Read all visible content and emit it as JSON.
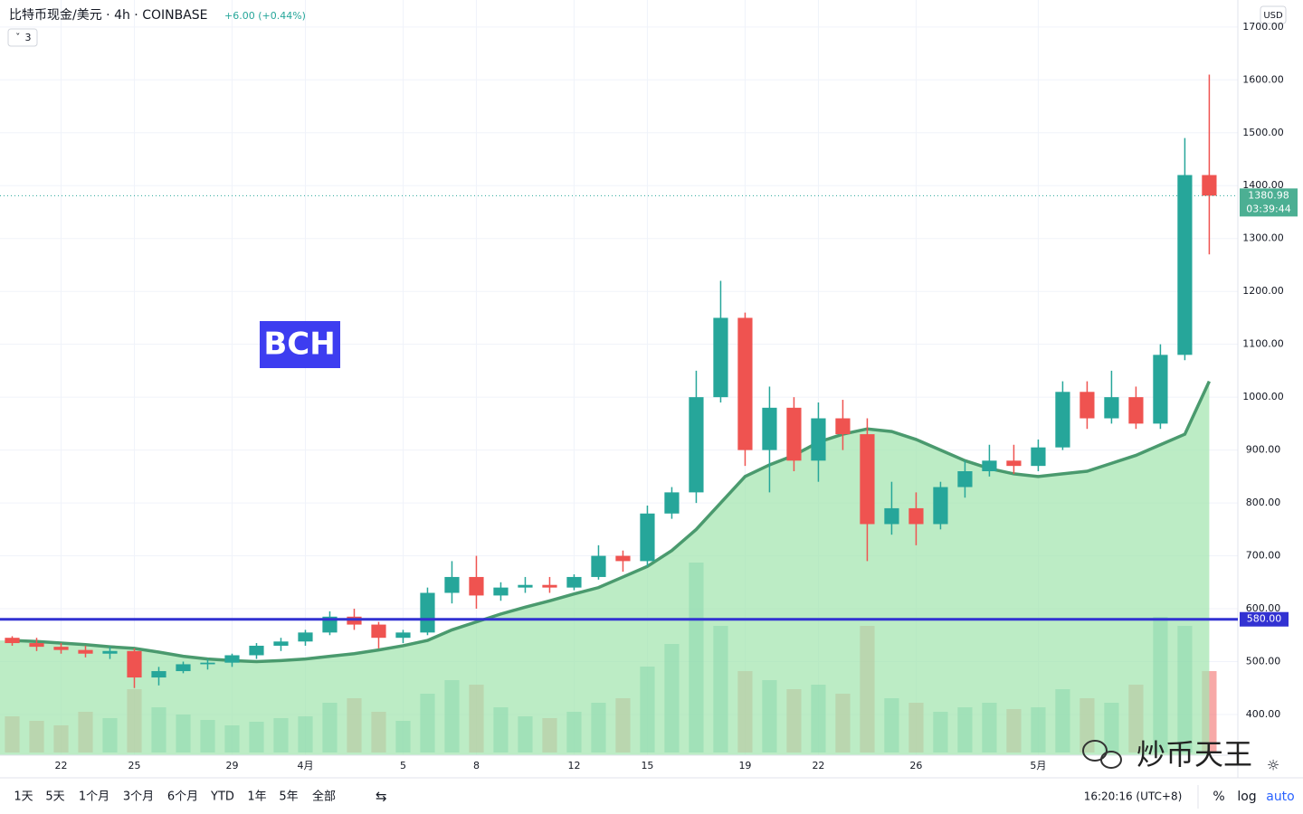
{
  "chart_data": {
    "type": "candlestick",
    "title": "比特币现金/美元 · 4h · COINBASE",
    "change": "+6.00 (+0.44%)",
    "indicator_count": "3",
    "currency": "USD",
    "annotation": "BCH",
    "watermark": "炒币天王",
    "time": "16:20:16 (UTC+8)",
    "toolbar": [
      "1天",
      "5天",
      "1个月",
      "3个月",
      "6个月",
      "YTD",
      "1年",
      "5年",
      "全部"
    ],
    "scale_buttons": [
      "%",
      "log",
      "auto"
    ],
    "up_color": "#26a69a",
    "down_color": "#ef5350",
    "open": [
      545,
      535,
      528,
      522,
      515,
      520,
      470,
      482,
      495,
      498,
      512,
      530,
      538,
      555,
      585,
      570,
      545,
      555,
      630,
      660,
      625,
      640,
      645,
      640,
      660,
      700,
      690,
      780,
      820,
      1000,
      1150,
      900,
      980,
      880,
      960,
      930,
      760,
      790,
      760,
      830,
      860,
      880,
      870,
      905,
      1010,
      960,
      1000,
      950,
      1080,
      1420
    ],
    "high": [
      548,
      545,
      535,
      530,
      528,
      525,
      490,
      500,
      505,
      515,
      535,
      545,
      560,
      595,
      600,
      575,
      560,
      640,
      690,
      700,
      650,
      660,
      660,
      665,
      720,
      710,
      795,
      830,
      1050,
      1220,
      1160,
      1020,
      1000,
      990,
      995,
      960,
      840,
      820,
      840,
      880,
      910,
      910,
      920,
      1030,
      1030,
      1050,
      1020,
      1100,
      1490,
      1610
    ],
    "low": [
      530,
      520,
      515,
      508,
      505,
      450,
      455,
      478,
      485,
      490,
      505,
      520,
      530,
      550,
      560,
      525,
      535,
      550,
      610,
      600,
      615,
      630,
      630,
      635,
      655,
      670,
      680,
      770,
      800,
      990,
      870,
      820,
      860,
      840,
      900,
      690,
      740,
      720,
      750,
      810,
      850,
      855,
      860,
      900,
      940,
      950,
      940,
      940,
      1070,
      1270
    ],
    "close": [
      535,
      528,
      522,
      515,
      520,
      470,
      482,
      495,
      498,
      512,
      530,
      538,
      555,
      585,
      570,
      545,
      555,
      630,
      660,
      625,
      640,
      645,
      640,
      660,
      700,
      690,
      780,
      820,
      1000,
      1150,
      900,
      980,
      880,
      960,
      930,
      760,
      790,
      760,
      830,
      860,
      880,
      870,
      905,
      1010,
      960,
      1000,
      950,
      1080,
      1420,
      1381
    ],
    "volume": [
      40,
      35,
      30,
      45,
      38,
      70,
      50,
      42,
      36,
      30,
      34,
      38,
      40,
      55,
      60,
      45,
      35,
      65,
      80,
      75,
      50,
      40,
      38,
      45,
      55,
      60,
      95,
      120,
      210,
      140,
      90,
      80,
      70,
      75,
      65,
      140,
      60,
      55,
      45,
      50,
      55,
      48,
      50,
      70,
      60,
      55,
      75,
      150,
      140,
      90
    ],
    "ma": {
      "color": "#4a9a6e",
      "values": [
        540,
        538,
        535,
        532,
        528,
        525,
        518,
        510,
        505,
        502,
        500,
        502,
        505,
        510,
        515,
        522,
        530,
        540,
        560,
        575,
        590,
        603,
        615,
        628,
        640,
        660,
        680,
        710,
        750,
        800,
        850,
        872,
        890,
        915,
        930,
        940,
        935,
        920,
        900,
        880,
        865,
        855,
        850,
        855,
        860,
        875,
        890,
        910,
        930,
        1030
      ]
    },
    "levels": [
      {
        "value": 580,
        "label": "580.00",
        "color": "#3232d2"
      }
    ],
    "last_price": {
      "value": 1380.98,
      "label": "1380.98",
      "countdown": "03:39:44"
    },
    "xlim": [
      -0.5,
      50.17
    ],
    "xticks": [
      {
        "value": 2,
        "label": "22"
      },
      {
        "value": 5,
        "label": "25"
      },
      {
        "value": 9,
        "label": "29"
      },
      {
        "value": 12,
        "label": "4月"
      },
      {
        "value": 16,
        "label": "5"
      },
      {
        "value": 19,
        "label": "8"
      },
      {
        "value": 23,
        "label": "12"
      },
      {
        "value": 26,
        "label": "15"
      },
      {
        "value": 30,
        "label": "19"
      },
      {
        "value": 33,
        "label": "22"
      },
      {
        "value": 37,
        "label": "26"
      },
      {
        "value": 42,
        "label": "5月"
      }
    ],
    "ylim": [
      323,
      1751
    ],
    "yticks": [
      {
        "value": 400,
        "label": "400.00"
      },
      {
        "value": 500,
        "label": "500.00"
      },
      {
        "value": 600,
        "label": "600.00"
      },
      {
        "value": 700,
        "label": "700.00"
      },
      {
        "value": 800,
        "label": "800.00"
      },
      {
        "value": 900,
        "label": "900.00"
      },
      {
        "value": 1000,
        "label": "1000.00"
      },
      {
        "value": 1100,
        "label": "1100.00"
      },
      {
        "value": 1200,
        "label": "1200.00"
      },
      {
        "value": 1300,
        "label": "1300.00"
      },
      {
        "value": 1400,
        "label": "1400.00"
      },
      {
        "value": 1500,
        "label": "1500.00"
      },
      {
        "value": 1600,
        "label": "1600.00"
      },
      {
        "value": 1700,
        "label": "1700.00"
      }
    ],
    "grid": true
  }
}
